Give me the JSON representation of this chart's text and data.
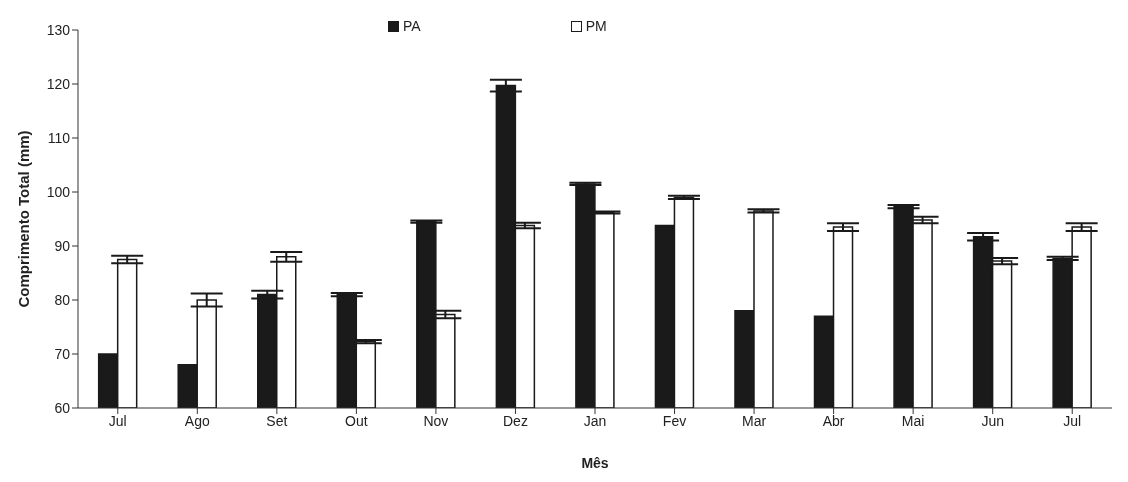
{
  "chart_data": {
    "type": "bar",
    "xlabel": "Mês",
    "ylabel": "Comprimento Total (mm)",
    "categories": [
      "Jul",
      "Ago",
      "Set",
      "Out",
      "Nov",
      "Dez",
      "Jan",
      "Fev",
      "Mar",
      "Abr",
      "Mai",
      "Jun",
      "Jul"
    ],
    "series": [
      {
        "name": "PA",
        "color": "#1a1a1a",
        "values": [
          70,
          68,
          81,
          81,
          94.5,
          119.7,
          101.5,
          93.8,
          78,
          77,
          97.3,
          91.7,
          87.7
        ],
        "errors": [
          null,
          null,
          0.7,
          0.3,
          0.2,
          1.1,
          0.2,
          null,
          null,
          null,
          0.3,
          0.7,
          0.3
        ]
      },
      {
        "name": "PM",
        "color": "#ffffff",
        "values": [
          87.5,
          80,
          88,
          72.3,
          77.3,
          93.8,
          96.2,
          99,
          96.5,
          93.5,
          94.8,
          87.2,
          93.5
        ],
        "errors": [
          0.7,
          1.2,
          0.9,
          0.3,
          0.7,
          0.5,
          0.2,
          0.3,
          0.3,
          0.7,
          0.6,
          0.6,
          0.7
        ]
      }
    ],
    "ylim": [
      60,
      130
    ],
    "yticks": [
      60,
      70,
      80,
      90,
      100,
      110,
      120,
      130
    ],
    "grid": false,
    "legend": "top"
  }
}
